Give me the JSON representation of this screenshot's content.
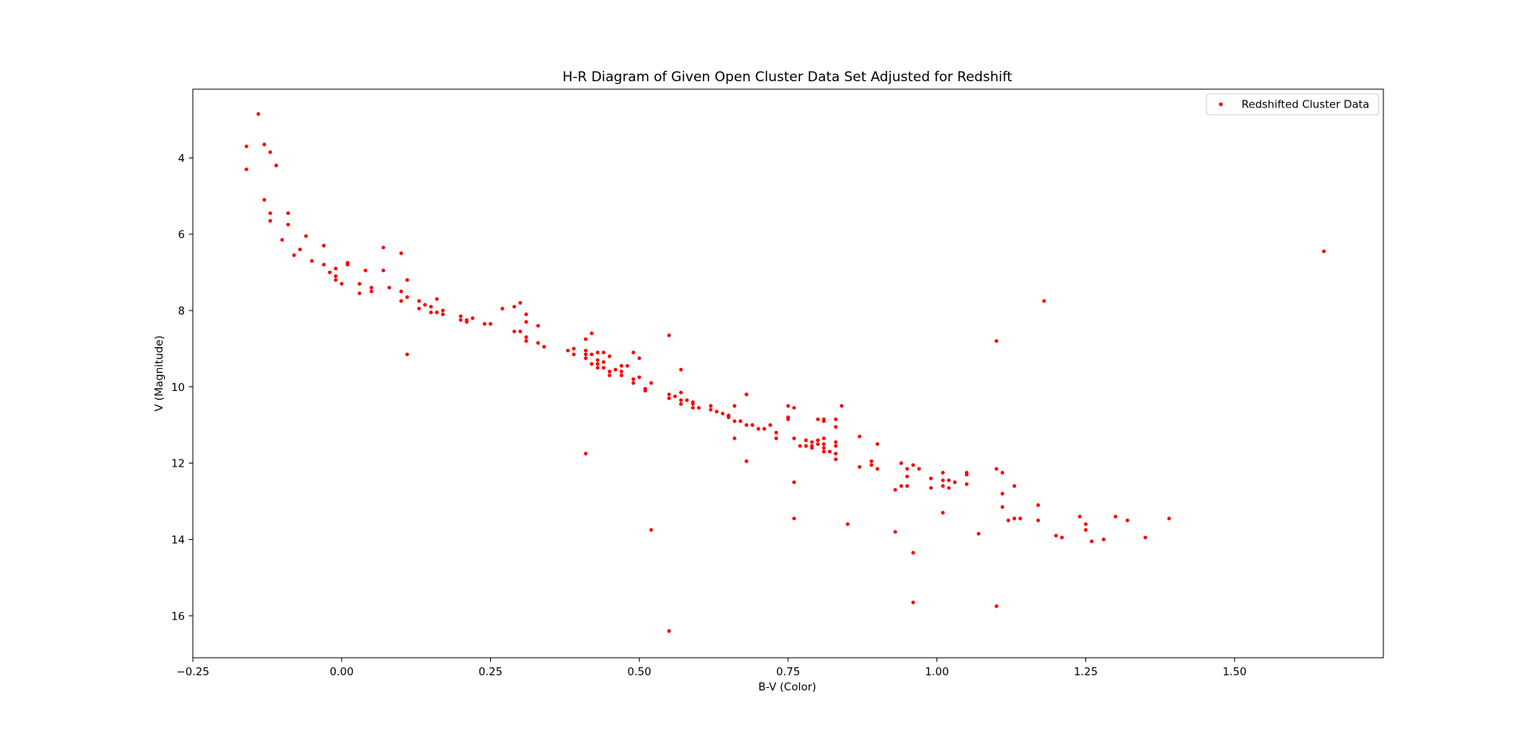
{
  "chart_data": {
    "type": "scatter",
    "title": "H-R Diagram of Given Open Cluster Data Set Adjusted for Redshift",
    "xlabel": "B-V (Color)",
    "ylabel": "V (Magnitude)",
    "xlim": [
      -0.25,
      1.75
    ],
    "ylim": [
      17.1,
      2.2
    ],
    "y_inverted": true,
    "x_ticks": [
      "−0.25",
      "0.00",
      "0.25",
      "0.50",
      "0.75",
      "1.00",
      "1.25",
      "1.50"
    ],
    "x_tick_values": [
      -0.25,
      0.0,
      0.25,
      0.5,
      0.75,
      1.0,
      1.25,
      1.5
    ],
    "y_ticks": [
      "4",
      "6",
      "8",
      "10",
      "12",
      "14",
      "16"
    ],
    "y_tick_values": [
      4,
      6,
      8,
      10,
      12,
      14,
      16
    ],
    "grid": false,
    "legend_position": "top-right",
    "series": [
      {
        "name": "Redshifted Cluster Data",
        "color": "#ff0000",
        "marker": "circle",
        "points": [
          [
            -0.16,
            3.7
          ],
          [
            -0.16,
            4.3
          ],
          [
            -0.14,
            2.85
          ],
          [
            -0.13,
            3.65
          ],
          [
            -0.12,
            3.85
          ],
          [
            -0.11,
            4.2
          ],
          [
            -0.13,
            5.1
          ],
          [
            -0.12,
            5.45
          ],
          [
            -0.12,
            5.65
          ],
          [
            -0.09,
            5.45
          ],
          [
            -0.09,
            5.75
          ],
          [
            -0.1,
            6.15
          ],
          [
            -0.08,
            6.55
          ],
          [
            -0.07,
            6.4
          ],
          [
            -0.06,
            6.05
          ],
          [
            -0.05,
            6.7
          ],
          [
            -0.03,
            6.3
          ],
          [
            -0.03,
            6.8
          ],
          [
            -0.02,
            7.0
          ],
          [
            -0.01,
            6.9
          ],
          [
            -0.01,
            7.1
          ],
          [
            -0.01,
            7.2
          ],
          [
            0.0,
            7.3
          ],
          [
            0.01,
            6.75
          ],
          [
            0.01,
            6.8
          ],
          [
            0.03,
            7.3
          ],
          [
            0.03,
            7.55
          ],
          [
            0.04,
            6.95
          ],
          [
            0.05,
            7.4
          ],
          [
            0.05,
            7.5
          ],
          [
            0.07,
            6.35
          ],
          [
            0.07,
            6.95
          ],
          [
            0.08,
            7.4
          ],
          [
            0.1,
            6.5
          ],
          [
            0.1,
            7.5
          ],
          [
            0.1,
            7.75
          ],
          [
            0.11,
            7.2
          ],
          [
            0.11,
            7.65
          ],
          [
            0.11,
            9.15
          ],
          [
            0.13,
            7.75
          ],
          [
            0.13,
            7.95
          ],
          [
            0.14,
            7.85
          ],
          [
            0.15,
            7.9
          ],
          [
            0.15,
            8.05
          ],
          [
            0.16,
            8.05
          ],
          [
            0.16,
            7.7
          ],
          [
            0.17,
            8.0
          ],
          [
            0.17,
            8.1
          ],
          [
            0.2,
            8.15
          ],
          [
            0.2,
            8.25
          ],
          [
            0.21,
            8.25
          ],
          [
            0.21,
            8.3
          ],
          [
            0.22,
            8.2
          ],
          [
            0.24,
            8.35
          ],
          [
            0.25,
            8.35
          ],
          [
            0.27,
            7.95
          ],
          [
            0.29,
            7.9
          ],
          [
            0.29,
            8.55
          ],
          [
            0.3,
            7.8
          ],
          [
            0.3,
            8.55
          ],
          [
            0.31,
            8.1
          ],
          [
            0.31,
            8.3
          ],
          [
            0.31,
            8.7
          ],
          [
            0.31,
            8.8
          ],
          [
            0.33,
            8.4
          ],
          [
            0.33,
            8.85
          ],
          [
            0.34,
            8.95
          ],
          [
            0.38,
            9.05
          ],
          [
            0.39,
            9.0
          ],
          [
            0.39,
            9.15
          ],
          [
            0.41,
            8.75
          ],
          [
            0.41,
            9.05
          ],
          [
            0.41,
            9.15
          ],
          [
            0.41,
            9.25
          ],
          [
            0.41,
            11.75
          ],
          [
            0.42,
            8.6
          ],
          [
            0.42,
            9.15
          ],
          [
            0.42,
            9.4
          ],
          [
            0.43,
            9.1
          ],
          [
            0.43,
            9.3
          ],
          [
            0.43,
            9.4
          ],
          [
            0.43,
            9.5
          ],
          [
            0.44,
            9.1
          ],
          [
            0.44,
            9.35
          ],
          [
            0.44,
            9.5
          ],
          [
            0.45,
            9.2
          ],
          [
            0.45,
            9.6
          ],
          [
            0.45,
            9.7
          ],
          [
            0.46,
            9.55
          ],
          [
            0.47,
            9.45
          ],
          [
            0.47,
            9.6
          ],
          [
            0.47,
            9.7
          ],
          [
            0.48,
            9.45
          ],
          [
            0.49,
            9.1
          ],
          [
            0.49,
            9.8
          ],
          [
            0.49,
            9.9
          ],
          [
            0.5,
            9.25
          ],
          [
            0.5,
            9.75
          ],
          [
            0.51,
            10.05
          ],
          [
            0.51,
            10.1
          ],
          [
            0.52,
            9.9
          ],
          [
            0.52,
            13.75
          ],
          [
            0.55,
            8.65
          ],
          [
            0.55,
            10.2
          ],
          [
            0.55,
            10.3
          ],
          [
            0.55,
            16.4
          ],
          [
            0.56,
            10.25
          ],
          [
            0.57,
            9.55
          ],
          [
            0.57,
            10.15
          ],
          [
            0.57,
            10.35
          ],
          [
            0.57,
            10.45
          ],
          [
            0.58,
            10.35
          ],
          [
            0.59,
            10.4
          ],
          [
            0.59,
            10.45
          ],
          [
            0.59,
            10.55
          ],
          [
            0.6,
            10.55
          ],
          [
            0.62,
            10.5
          ],
          [
            0.62,
            10.6
          ],
          [
            0.63,
            10.65
          ],
          [
            0.64,
            10.7
          ],
          [
            0.65,
            10.75
          ],
          [
            0.65,
            10.8
          ],
          [
            0.66,
            10.5
          ],
          [
            0.66,
            10.9
          ],
          [
            0.66,
            11.35
          ],
          [
            0.67,
            10.9
          ],
          [
            0.68,
            10.2
          ],
          [
            0.68,
            11.0
          ],
          [
            0.68,
            11.95
          ],
          [
            0.69,
            11.0
          ],
          [
            0.7,
            11.1
          ],
          [
            0.71,
            11.1
          ],
          [
            0.72,
            11.0
          ],
          [
            0.73,
            11.2
          ],
          [
            0.73,
            11.35
          ],
          [
            0.75,
            10.5
          ],
          [
            0.75,
            10.8
          ],
          [
            0.75,
            10.85
          ],
          [
            0.76,
            10.55
          ],
          [
            0.76,
            11.35
          ],
          [
            0.76,
            12.5
          ],
          [
            0.76,
            13.45
          ],
          [
            0.77,
            11.55
          ],
          [
            0.78,
            11.4
          ],
          [
            0.78,
            11.55
          ],
          [
            0.79,
            11.45
          ],
          [
            0.79,
            11.55
          ],
          [
            0.79,
            11.6
          ],
          [
            0.8,
            10.85
          ],
          [
            0.8,
            11.4
          ],
          [
            0.8,
            11.5
          ],
          [
            0.81,
            10.85
          ],
          [
            0.81,
            10.9
          ],
          [
            0.81,
            11.35
          ],
          [
            0.81,
            11.5
          ],
          [
            0.81,
            11.6
          ],
          [
            0.81,
            11.7
          ],
          [
            0.82,
            11.7
          ],
          [
            0.83,
            10.85
          ],
          [
            0.83,
            11.05
          ],
          [
            0.83,
            11.45
          ],
          [
            0.83,
            11.55
          ],
          [
            0.83,
            11.75
          ],
          [
            0.83,
            11.9
          ],
          [
            0.84,
            10.5
          ],
          [
            0.85,
            13.6
          ],
          [
            0.87,
            11.3
          ],
          [
            0.87,
            12.1
          ],
          [
            0.89,
            11.95
          ],
          [
            0.89,
            12.05
          ],
          [
            0.9,
            11.5
          ],
          [
            0.9,
            12.15
          ],
          [
            0.93,
            12.7
          ],
          [
            0.93,
            13.8
          ],
          [
            0.94,
            12.0
          ],
          [
            0.94,
            12.6
          ],
          [
            0.95,
            12.15
          ],
          [
            0.95,
            12.35
          ],
          [
            0.95,
            12.6
          ],
          [
            0.96,
            12.05
          ],
          [
            0.96,
            14.35
          ],
          [
            0.96,
            15.65
          ],
          [
            0.97,
            12.15
          ],
          [
            0.99,
            12.4
          ],
          [
            0.99,
            12.65
          ],
          [
            1.01,
            12.25
          ],
          [
            1.01,
            12.45
          ],
          [
            1.01,
            12.6
          ],
          [
            1.01,
            13.3
          ],
          [
            1.02,
            12.45
          ],
          [
            1.02,
            12.65
          ],
          [
            1.03,
            12.5
          ],
          [
            1.05,
            12.25
          ],
          [
            1.05,
            12.3
          ],
          [
            1.05,
            12.55
          ],
          [
            1.07,
            13.85
          ],
          [
            1.1,
            8.8
          ],
          [
            1.1,
            12.15
          ],
          [
            1.1,
            15.75
          ],
          [
            1.11,
            12.25
          ],
          [
            1.11,
            12.8
          ],
          [
            1.11,
            13.15
          ],
          [
            1.12,
            13.5
          ],
          [
            1.13,
            12.6
          ],
          [
            1.13,
            13.45
          ],
          [
            1.14,
            13.45
          ],
          [
            1.17,
            13.1
          ],
          [
            1.17,
            13.5
          ],
          [
            1.18,
            7.75
          ],
          [
            1.2,
            13.9
          ],
          [
            1.21,
            13.95
          ],
          [
            1.24,
            13.4
          ],
          [
            1.25,
            13.6
          ],
          [
            1.25,
            13.75
          ],
          [
            1.26,
            14.05
          ],
          [
            1.28,
            14.0
          ],
          [
            1.3,
            13.4
          ],
          [
            1.32,
            13.5
          ],
          [
            1.35,
            13.95
          ],
          [
            1.39,
            13.45
          ],
          [
            1.65,
            6.45
          ]
        ]
      }
    ]
  }
}
